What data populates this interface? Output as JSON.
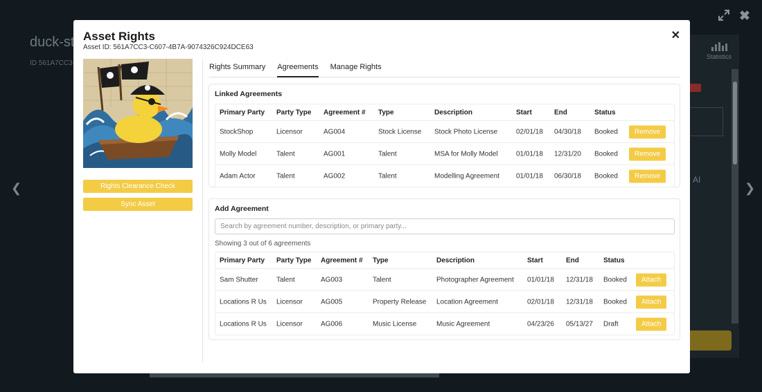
{
  "background": {
    "title": "duck-st",
    "id_text": "ID 561A7CC3-C",
    "stats_label": "Statistics",
    "ai_label": "AI"
  },
  "modal": {
    "title": "Asset Rights",
    "subtitle": "Asset ID: 561A7CC3-C607-4B7A-9074326C924DCE63",
    "close_label": "✕",
    "sidebar": {
      "rights_check_label": "Rights Clearance Check",
      "sync_label": "Sync Asset"
    },
    "tabs": [
      {
        "label": "Rights Summary",
        "active": false
      },
      {
        "label": "Agreements",
        "active": true
      },
      {
        "label": "Manage Rights",
        "active": false
      }
    ],
    "linked": {
      "title": "Linked Agreements",
      "headers": [
        "Primary Party",
        "Party Type",
        "Agreement #",
        "Type",
        "Description",
        "Start",
        "End",
        "Status"
      ],
      "rows": [
        {
          "party": "StockShop",
          "party_type": "Licensor",
          "number": "AG004",
          "type": "Stock License",
          "description": "Stock Photo License",
          "start": "02/01/18",
          "end": "04/30/18",
          "status": "Booked",
          "action": "Remove"
        },
        {
          "party": "Molly Model",
          "party_type": "Talent",
          "number": "AG001",
          "type": "Talent",
          "description": "MSA for Molly Model",
          "start": "01/01/18",
          "end": "12/31/20",
          "status": "Booked",
          "action": "Remove"
        },
        {
          "party": "Adam Actor",
          "party_type": "Talent",
          "number": "AG002",
          "type": "Talent",
          "description": "Modelling Agreement",
          "start": "01/01/18",
          "end": "06/30/18",
          "status": "Booked",
          "action": "Remove"
        }
      ]
    },
    "add": {
      "title": "Add Agreement",
      "search_placeholder": "Search by agreement number, description, or primary party...",
      "showing": "Showing 3 out of 6 agreements",
      "headers": [
        "Primary Party",
        "Party Type",
        "Agreement #",
        "Type",
        "Description",
        "Start",
        "End",
        "Status"
      ],
      "rows": [
        {
          "party": "Sam Shutter",
          "party_type": "Talent",
          "number": "AG003",
          "type": "Talent",
          "description": "Photographer Agreement",
          "start": "01/01/18",
          "end": "12/31/18",
          "status": "Booked",
          "action": "Attach"
        },
        {
          "party": "Locations R Us",
          "party_type": "Licensor",
          "number": "AG005",
          "type": "Property Release",
          "description": "Location Agreement",
          "start": "02/01/18",
          "end": "12/31/18",
          "status": "Booked",
          "action": "Attach"
        },
        {
          "party": "Locations R Us",
          "party_type": "Licensor",
          "number": "AG006",
          "type": "Music License",
          "description": "Music Agreement",
          "start": "04/23/26",
          "end": "05/13/27",
          "status": "Draft",
          "action": "Attach"
        }
      ]
    }
  },
  "colors": {
    "accent": "#f3cb45",
    "overlay": "#0d1216"
  }
}
